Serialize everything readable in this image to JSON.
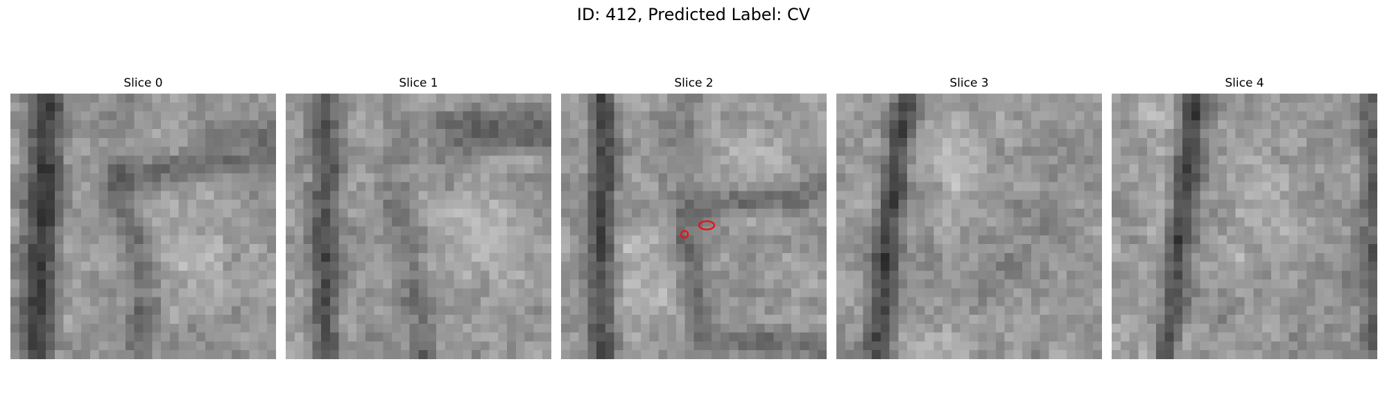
{
  "figure": {
    "title": "ID: 412, Predicted Label: CV"
  },
  "panels": [
    {
      "title": "Slice 0"
    },
    {
      "title": "Slice 1"
    },
    {
      "title": "Slice 2",
      "markers": 2
    },
    {
      "title": "Slice 3"
    },
    {
      "title": "Slice 4"
    }
  ],
  "colors": {
    "marker": "#e8141a",
    "colormap": "gray"
  }
}
